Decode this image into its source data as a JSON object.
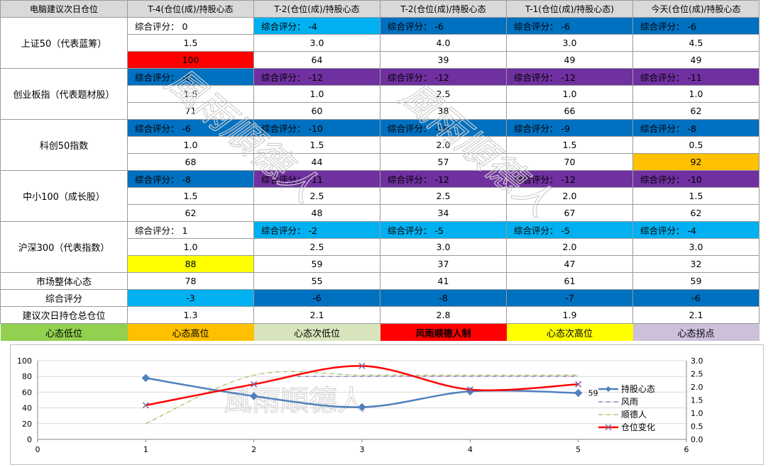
{
  "table": {
    "header": [
      "电脑建议次日仓位",
      "T-4(仓位(成)/持股心态",
      "T-2(仓位(成)/持股心态",
      "T-2(仓位(成)/持股心态",
      "T-1(仓位(成)/持股心态)",
      "今天(仓位(成)/持股心态"
    ],
    "score_prefix": "综合评分：",
    "groups": [
      {
        "label": "上证50（代表蓝筹）",
        "scores": [
          "0",
          "-4",
          "-6",
          "-6",
          "-6"
        ],
        "score_colors": [
          "none",
          "light",
          "dark",
          "dark",
          "dark"
        ],
        "positions": [
          "1.5",
          "3.0",
          "4.0",
          "3.0",
          "4.5"
        ],
        "moods": [
          "100",
          "64",
          "39",
          "49",
          "49"
        ],
        "mood_colors": [
          "red",
          "none",
          "none",
          "none",
          "none"
        ]
      },
      {
        "label": "创业板指（代表题材股）",
        "scores": [
          "-8",
          "-12",
          "-12",
          "-12",
          "-11"
        ],
        "score_colors": [
          "dark",
          "purple",
          "purple",
          "purple",
          "purple"
        ],
        "positions": [
          "1.5",
          "1.0",
          "2.5",
          "1.0",
          "1.0"
        ],
        "moods": [
          "71",
          "60",
          "38",
          "66",
          "62"
        ],
        "mood_colors": [
          "none",
          "none",
          "none",
          "none",
          "none"
        ]
      },
      {
        "label": "科创50指数",
        "scores": [
          "-6",
          "-10",
          "-10",
          "-9",
          "-8"
        ],
        "score_colors": [
          "dark",
          "dark",
          "dark",
          "dark",
          "dark"
        ],
        "positions": [
          "1.0",
          "1.5",
          "2.0",
          "1.5",
          "0.5"
        ],
        "moods": [
          "68",
          "44",
          "57",
          "70",
          "92"
        ],
        "mood_colors": [
          "none",
          "none",
          "none",
          "none",
          "orange"
        ]
      },
      {
        "label": "中小100（成长股）",
        "scores": [
          "-8",
          "-11",
          "-12",
          "-12",
          "-10"
        ],
        "score_colors": [
          "dark",
          "purple",
          "purple",
          "purple",
          "purple"
        ],
        "positions": [
          "1.5",
          "2.5",
          "2.5",
          "2.0",
          "1.5"
        ],
        "moods": [
          "62",
          "48",
          "34",
          "67",
          "62"
        ],
        "mood_colors": [
          "none",
          "none",
          "none",
          "none",
          "none"
        ]
      },
      {
        "label": "沪深300（代表指数）",
        "scores": [
          "1",
          "-2",
          "-5",
          "-5",
          "-4"
        ],
        "score_colors": [
          "none",
          "light",
          "light",
          "light",
          "light"
        ],
        "positions": [
          "1.0",
          "2.5",
          "3.0",
          "2.0",
          "3.0"
        ],
        "moods": [
          "88",
          "59",
          "37",
          "47",
          "32"
        ],
        "mood_colors": [
          "yellow",
          "none",
          "none",
          "none",
          "none"
        ]
      }
    ],
    "summary": [
      {
        "label": "市场整体心态",
        "values": [
          "78",
          "55",
          "41",
          "61",
          "59"
        ],
        "colors": [
          "none",
          "none",
          "none",
          "none",
          "none"
        ]
      },
      {
        "label": "综合评分",
        "values": [
          "-3",
          "-6",
          "-8",
          "-7",
          "-6"
        ],
        "colors": [
          "light",
          "dark",
          "dark",
          "dark",
          "dark"
        ]
      },
      {
        "label": "建议次日持仓总仓位",
        "values": [
          "1.3",
          "2.1",
          "2.8",
          "1.9",
          "2.1"
        ],
        "colors": [
          "none",
          "none",
          "none",
          "none",
          "none"
        ]
      }
    ],
    "legend": [
      {
        "text": "心态低位",
        "color": "#92d050",
        "bold": false
      },
      {
        "text": "心态高位",
        "color": "#ffc000",
        "bold": false
      },
      {
        "text": "心态次低位",
        "color": "#d8e4bc",
        "bold": false
      },
      {
        "text": "风雨顺德人制",
        "color": "#ff0000",
        "bold": true
      },
      {
        "text": "心态次高位",
        "color": "#ffff00",
        "bold": false
      },
      {
        "text": "心态拐点",
        "color": "#ccc0da",
        "bold": false
      }
    ]
  },
  "watermark_text": "風雨順德人",
  "chart_data": {
    "type": "line",
    "x": [
      1,
      2,
      3,
      4,
      5
    ],
    "xlim": [
      0,
      6
    ],
    "xticks": [
      0,
      1,
      2,
      3,
      4,
      5,
      6
    ],
    "ylim": [
      0,
      100
    ],
    "yticks": [
      0,
      20,
      40,
      60,
      80,
      100
    ],
    "y2lim": [
      0,
      3.0
    ],
    "y2ticks": [
      "0.0",
      "0.5",
      "1.0",
      "1.5",
      "2.0",
      "2.5",
      "3.0"
    ],
    "grid": "horizontal",
    "legend_position": "right",
    "series": [
      {
        "name": "持股心态",
        "axis": "left",
        "color": "#4f81bd",
        "values": [
          78,
          55,
          41,
          61,
          59
        ],
        "last_label": "59"
      },
      {
        "name": "风雨",
        "axis": "right",
        "color": "#8064a2",
        "values": [
          2.4,
          2.4,
          2.4,
          2.4,
          2.4
        ],
        "x_start": 2.4
      },
      {
        "name": "顺德人",
        "axis": "right",
        "color": "#9bbb59",
        "values": [
          0.6,
          2.45,
          2.45,
          2.45,
          2.45
        ]
      },
      {
        "name": "仓位变化",
        "axis": "right",
        "color": "#ff0000",
        "values": [
          1.3,
          2.1,
          2.8,
          1.9,
          2.1
        ]
      }
    ]
  },
  "chart_colors": {
    "grid": "#d9d9d9",
    "axis": "#868686"
  }
}
